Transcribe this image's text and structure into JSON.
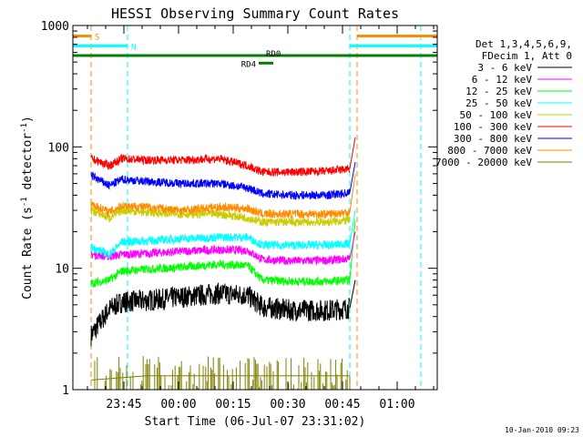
{
  "chart_data": {
    "type": "line",
    "title": "HESSI Observing Summary Count Rates",
    "xlabel": "Start Time (06-Jul-07 23:31:02)",
    "ylabel_main": "Count Rate (s",
    "ylabel_sup1": "-1",
    "ylabel_mid": " detector",
    "ylabel_sup2": "-1",
    "ylabel_end": ")",
    "date_stamp": "10-Jan-2010 09:23",
    "x_unit": "minutes after 23:31:02",
    "xlim": [
      0,
      100
    ],
    "ylim": [
      1,
      1000
    ],
    "y_scale": "log",
    "x_ticks": [
      {
        "t": 14,
        "label": "23:45"
      },
      {
        "t": 29,
        "label": "00:00"
      },
      {
        "t": 44,
        "label": "00:15"
      },
      {
        "t": 59,
        "label": "00:30"
      },
      {
        "t": 74,
        "label": "00:45"
      },
      {
        "t": 89,
        "label": "01:00"
      }
    ],
    "y_ticks": [
      {
        "v": 1,
        "label": "1"
      },
      {
        "v": 10,
        "label": "10"
      },
      {
        "v": 100,
        "label": "100"
      },
      {
        "v": 1000,
        "label": "1000"
      }
    ],
    "legend_header": [
      "Det 1,3,4,5,6,9,",
      "FDecim 1, Att 0"
    ],
    "legend_location": "right",
    "series": [
      {
        "name": "3 - 6 keV",
        "color": "#000000",
        "points": [
          [
            5,
            2.8
          ],
          [
            10,
            4.6
          ],
          [
            13.5,
            5.3
          ],
          [
            20,
            5.4
          ],
          [
            30,
            5.8
          ],
          [
            40,
            6.2
          ],
          [
            48,
            6.0
          ],
          [
            52,
            4.8
          ],
          [
            60,
            4.5
          ],
          [
            70,
            4.5
          ],
          [
            76,
            4.7
          ]
        ]
      },
      {
        "name": "6 - 12 keV",
        "color": "#ff00ff",
        "points": [
          [
            5,
            13
          ],
          [
            10,
            12.5
          ],
          [
            13.5,
            13
          ],
          [
            20,
            13.2
          ],
          [
            30,
            13.8
          ],
          [
            40,
            14.2
          ],
          [
            48,
            14
          ],
          [
            52,
            11.8
          ],
          [
            60,
            11.5
          ],
          [
            70,
            11.6
          ],
          [
            76,
            12
          ]
        ]
      },
      {
        "name": "12 - 25 keV",
        "color": "#00ff00",
        "points": [
          [
            5,
            7.5
          ],
          [
            10,
            8
          ],
          [
            13.5,
            9.5
          ],
          [
            20,
            9.8
          ],
          [
            30,
            10.2
          ],
          [
            40,
            10.8
          ],
          [
            48,
            10.5
          ],
          [
            52,
            8
          ],
          [
            60,
            7.8
          ],
          [
            70,
            7.8
          ],
          [
            76,
            8
          ]
        ]
      },
      {
        "name": "25 - 50 keV",
        "color": "#00ffff",
        "points": [
          [
            5,
            15
          ],
          [
            10,
            13
          ],
          [
            13.5,
            16.5
          ],
          [
            20,
            16.8
          ],
          [
            30,
            17.5
          ],
          [
            40,
            18
          ],
          [
            48,
            18
          ],
          [
            52,
            15.5
          ],
          [
            60,
            15.5
          ],
          [
            70,
            15.5
          ],
          [
            76,
            16
          ]
        ]
      },
      {
        "name": "50 - 100 keV",
        "color": "#cccc00",
        "points": [
          [
            5,
            30
          ],
          [
            10,
            26
          ],
          [
            13.5,
            30
          ],
          [
            20,
            29
          ],
          [
            30,
            28
          ],
          [
            40,
            28
          ],
          [
            48,
            26
          ],
          [
            52,
            24
          ],
          [
            60,
            24
          ],
          [
            70,
            24
          ],
          [
            76,
            25
          ]
        ]
      },
      {
        "name": "100 - 300 keV",
        "color": "#ff0000",
        "points": [
          [
            5,
            80
          ],
          [
            10,
            70
          ],
          [
            13.5,
            80
          ],
          [
            20,
            78
          ],
          [
            30,
            78
          ],
          [
            40,
            80
          ],
          [
            48,
            70
          ],
          [
            52,
            62
          ],
          [
            60,
            62
          ],
          [
            70,
            63
          ],
          [
            76,
            66
          ]
        ]
      },
      {
        "name": "300 - 800 keV",
        "color": "#0000ff",
        "points": [
          [
            5,
            58
          ],
          [
            10,
            48
          ],
          [
            13.5,
            54
          ],
          [
            20,
            52
          ],
          [
            30,
            50
          ],
          [
            40,
            50
          ],
          [
            48,
            46
          ],
          [
            52,
            41
          ],
          [
            60,
            40
          ],
          [
            70,
            40
          ],
          [
            76,
            42
          ]
        ]
      },
      {
        "name": "800 - 7000 keV",
        "color": "#ff8c00",
        "points": [
          [
            5,
            34
          ],
          [
            10,
            29
          ],
          [
            13.5,
            33
          ],
          [
            20,
            32
          ],
          [
            30,
            30
          ],
          [
            40,
            32
          ],
          [
            48,
            31
          ],
          [
            52,
            28
          ],
          [
            60,
            28
          ],
          [
            70,
            28
          ],
          [
            76,
            29
          ]
        ]
      },
      {
        "name": "7000 - 20000 keV",
        "color": "#808000",
        "points": [
          [
            5,
            1.2
          ],
          [
            20,
            1.3
          ],
          [
            40,
            1.3
          ],
          [
            60,
            1.3
          ],
          [
            76,
            1.3
          ]
        ]
      }
    ],
    "annotations": [
      {
        "label": "S",
        "kind": "bar",
        "color": "#ff8c00",
        "t0": 0,
        "t1": 5,
        "v": 820
      },
      {
        "label": "S",
        "kind": "bar",
        "color": "#ff8c00",
        "t0": 78,
        "t1": 100,
        "v": 820
      },
      {
        "label": "N",
        "kind": "bar",
        "color": "#00ffff",
        "t0": 0,
        "t1": 15,
        "v": 680
      },
      {
        "label": "N",
        "kind": "bar",
        "color": "#00ffff",
        "t0": 76,
        "t1": 100,
        "v": 680
      },
      {
        "label": "RD0",
        "kind": "bar",
        "color": "#008000",
        "t0": 0,
        "t1": 100,
        "v": 565
      },
      {
        "label": "RD4",
        "kind": "bar",
        "color": "#008000",
        "t0": 51,
        "t1": 55,
        "v": 490
      }
    ],
    "markers": [
      {
        "t": 5,
        "color": "#ff8c00"
      },
      {
        "t": 15,
        "color": "#00ffff"
      },
      {
        "t": 76,
        "color": "#00ffff"
      },
      {
        "t": 78,
        "color": "#ff8c00"
      },
      {
        "t": 95.5,
        "color": "#00ffff"
      }
    ]
  }
}
